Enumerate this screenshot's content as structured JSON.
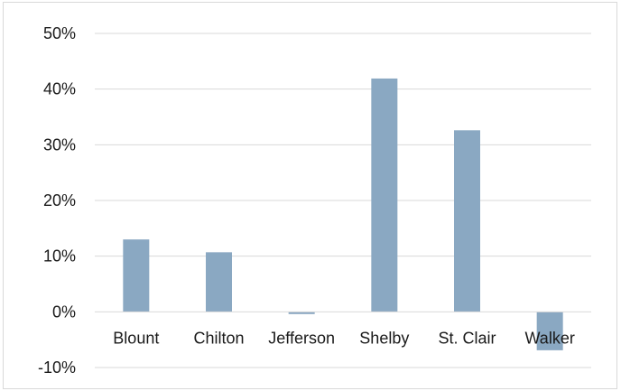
{
  "chart_data": {
    "type": "bar",
    "title": "",
    "xlabel": "",
    "ylabel": "",
    "categories": [
      "Blount",
      "Chilton",
      "Jefferson",
      "Shelby",
      "St. Clair",
      "Walker"
    ],
    "values": [
      13.0,
      10.7,
      -0.4,
      41.9,
      32.6,
      -6.9
    ],
    "ylim": [
      -10,
      50
    ],
    "yticks": [
      50,
      40,
      30,
      20,
      10,
      0,
      -10
    ],
    "ytick_labels": [
      "50%",
      "40%",
      "30%",
      "20%",
      "10%",
      "0%",
      "-10%"
    ],
    "bar_color": "#8aa8c2",
    "grid": true,
    "legend": "none"
  }
}
